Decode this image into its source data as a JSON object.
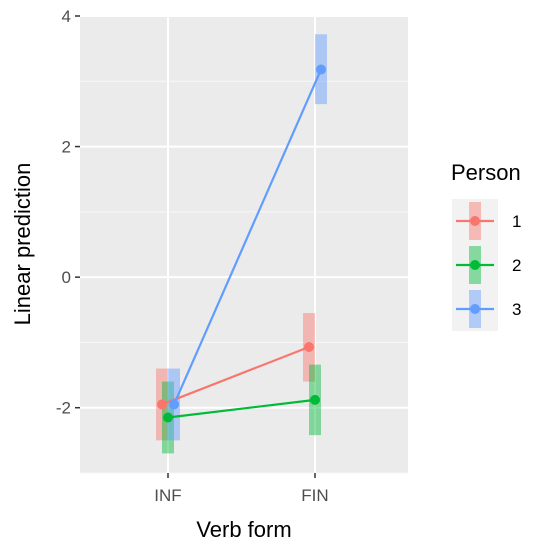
{
  "chart_data": {
    "type": "line",
    "title": "",
    "xlabel": "Verb form",
    "ylabel": "Linear prediction",
    "categories": [
      "INF",
      "FIN"
    ],
    "ylim": [
      -3,
      4
    ],
    "yticks": [
      -2,
      0,
      2,
      4
    ],
    "grid": true,
    "legend": {
      "title": "Person",
      "position": "right"
    },
    "series": [
      {
        "name": "1",
        "color": "#F8766D",
        "values": [
          -1.95,
          -1.07
        ],
        "ci_low": [
          -2.5,
          -1.6
        ],
        "ci_high": [
          -1.4,
          -0.55
        ]
      },
      {
        "name": "2",
        "color": "#00BA38",
        "values": [
          -2.15,
          -1.88
        ],
        "ci_low": [
          -2.7,
          -2.42
        ],
        "ci_high": [
          -1.6,
          -1.34
        ]
      },
      {
        "name": "3",
        "color": "#619CFF",
        "values": [
          -1.95,
          3.18
        ],
        "ci_low": [
          -2.5,
          2.65
        ],
        "ci_high": [
          -1.4,
          3.72
        ]
      }
    ]
  }
}
